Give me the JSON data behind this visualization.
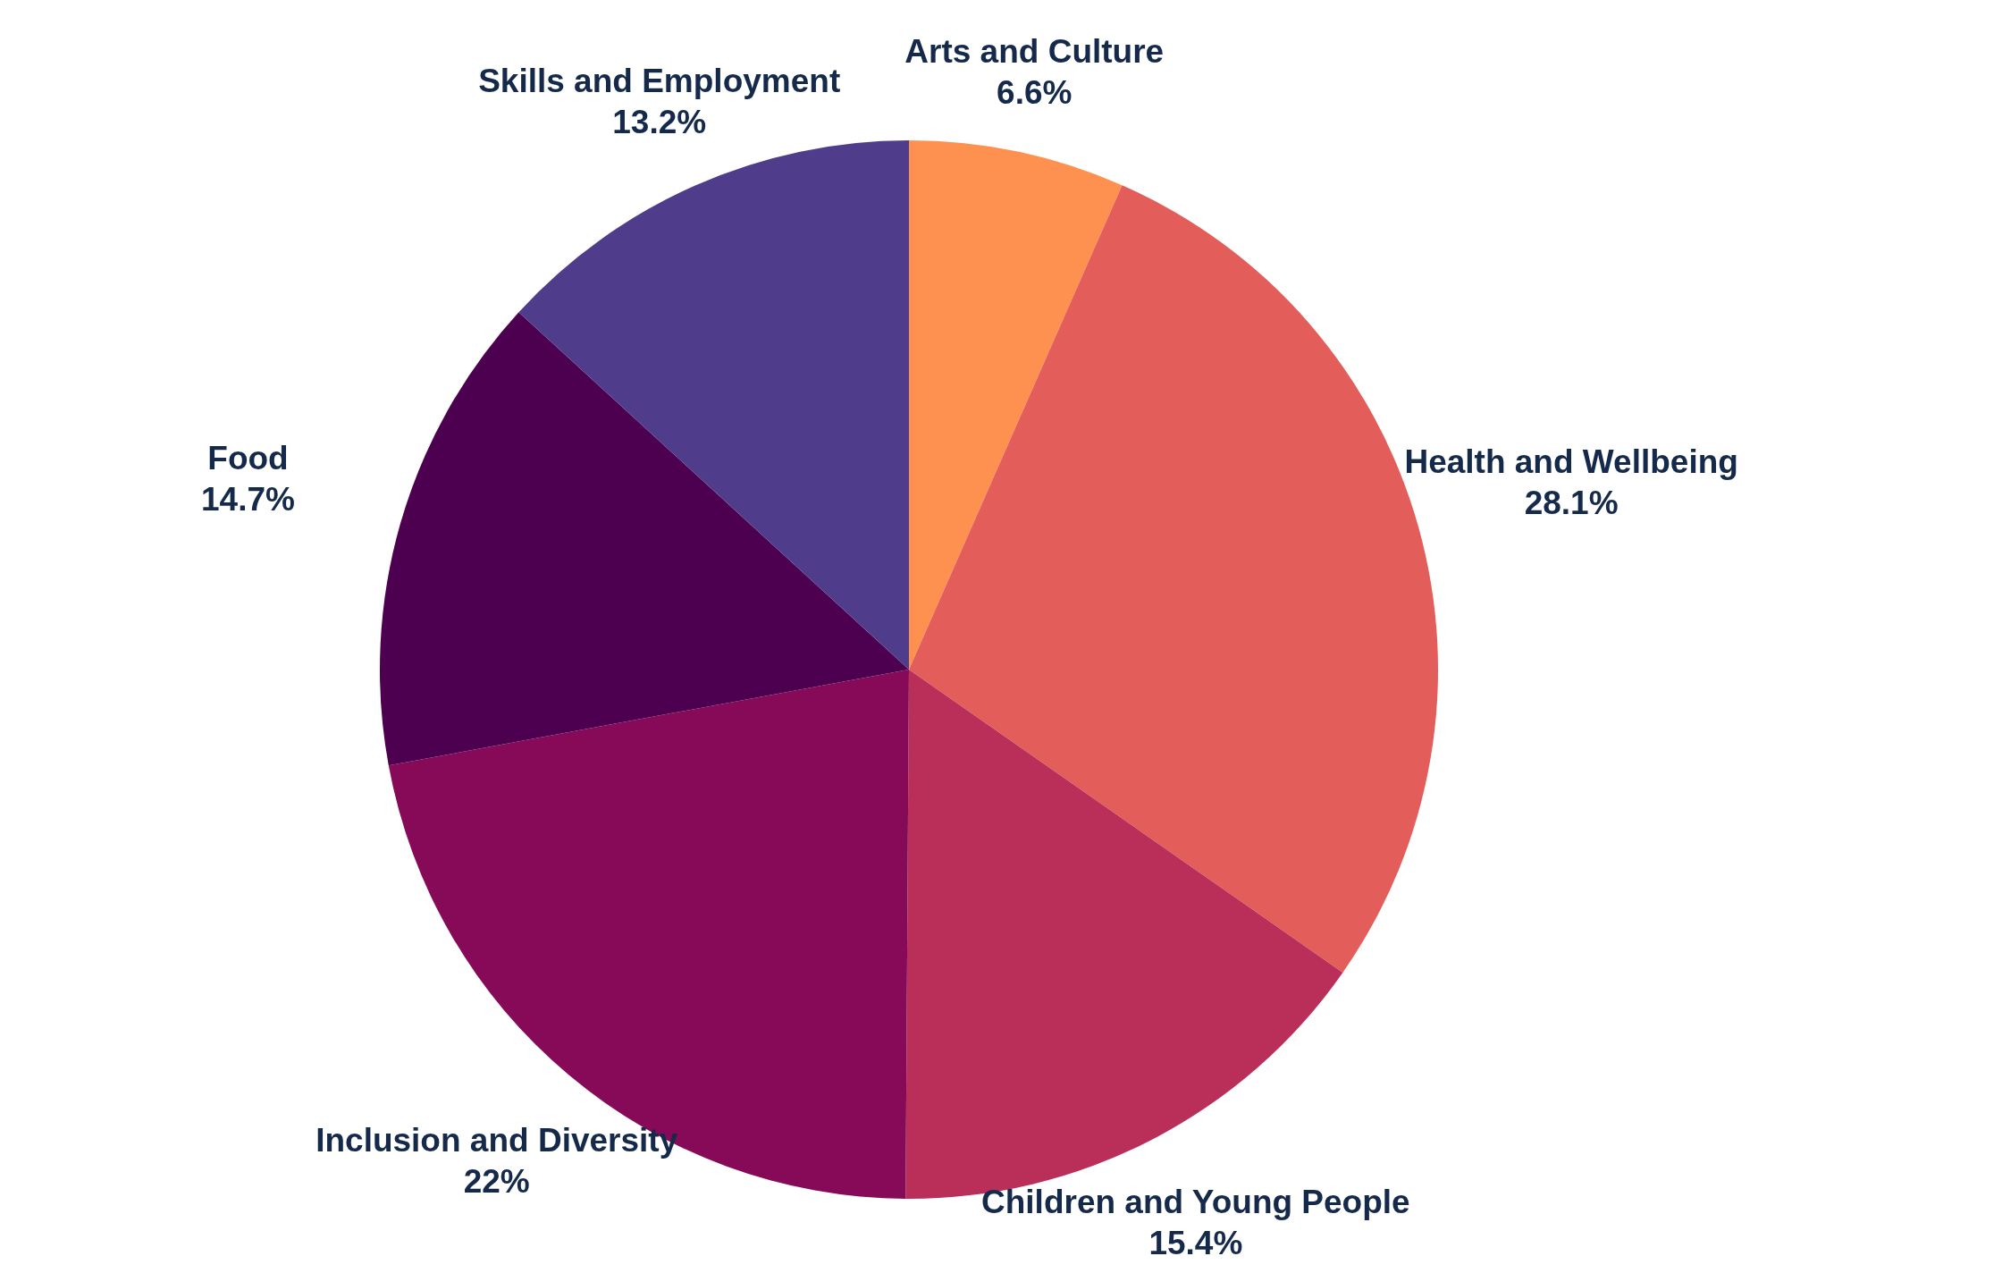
{
  "chart_data": {
    "type": "pie",
    "categories": [
      "Arts and Culture",
      "Health and Wellbeing",
      "Children and Young People",
      "Inclusion and Diversity",
      "Food",
      "Skills and Employment"
    ],
    "values": [
      6.6,
      28.1,
      15.4,
      22,
      14.7,
      13.2
    ],
    "value_labels": [
      "6.6%",
      "28.1%",
      "15.4%",
      "22%",
      "14.7%",
      "13.2%"
    ],
    "colors": [
      "#fe9150",
      "#e35d5a",
      "#b92f5a",
      "#870a59",
      "#4d004f",
      "#4f3c8b"
    ]
  }
}
